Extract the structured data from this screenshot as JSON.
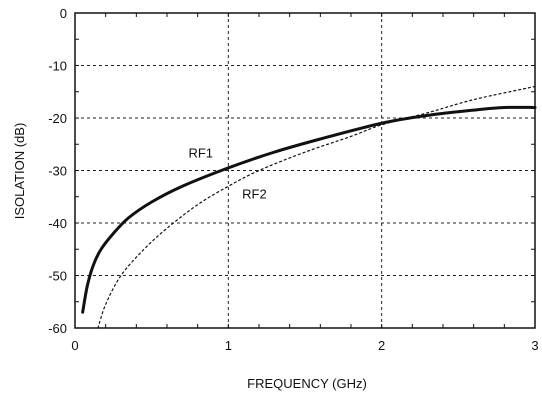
{
  "colors": {
    "background": "#ffffff",
    "axis": "#111111",
    "grid": "#222222",
    "series": "#111111"
  },
  "chart_data": {
    "type": "line",
    "title": "",
    "xlabel": "FREQUENCY (GHz)",
    "ylabel": "ISOLATION (dB)",
    "xlim": [
      0,
      3
    ],
    "ylim": [
      -60,
      0
    ],
    "x_ticks": [
      0,
      1,
      2,
      3
    ],
    "y_ticks": [
      0,
      -10,
      -20,
      -30,
      -40,
      -50,
      -60
    ],
    "grid": true,
    "grid_style": "dashed",
    "legend": "none",
    "series": [
      {
        "name": "RF1",
        "style": "solid-thick",
        "label_at": [
          0.82,
          -27.5
        ],
        "x": [
          0.05,
          0.08,
          0.12,
          0.17,
          0.25,
          0.35,
          0.5,
          0.7,
          1.0,
          1.3,
          1.6,
          2.0,
          2.3,
          2.6,
          2.8,
          3.0
        ],
        "y": [
          -57,
          -52,
          -48,
          -45,
          -42,
          -39,
          -36,
          -33,
          -29.5,
          -26.5,
          -24,
          -21,
          -19.5,
          -18.5,
          -18,
          -18
        ]
      },
      {
        "name": "RF2",
        "style": "dotted-thin",
        "label_at": [
          1.17,
          -35.3
        ],
        "x": [
          0.15,
          0.2,
          0.3,
          0.45,
          0.6,
          0.8,
          1.0,
          1.2,
          1.5,
          1.8,
          2.0,
          2.3,
          2.6,
          3.0
        ],
        "y": [
          -60,
          -55.5,
          -50,
          -45,
          -41,
          -36.5,
          -33,
          -30,
          -26.5,
          -23.5,
          -21.3,
          -19,
          -16.5,
          -14
        ]
      }
    ]
  }
}
